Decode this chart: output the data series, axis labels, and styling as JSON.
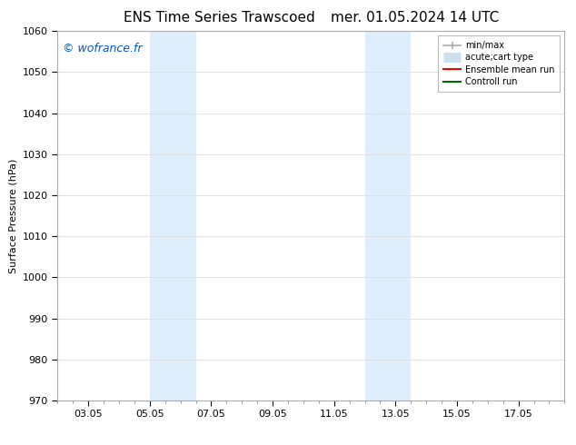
{
  "title_left": "ENS Time Series Trawscoed",
  "title_right": "mer. 01.05.2024 14 UTC",
  "ylabel": "Surface Pressure (hPa)",
  "ylim": [
    970,
    1060
  ],
  "yticks": [
    970,
    980,
    990,
    1000,
    1010,
    1020,
    1030,
    1040,
    1050,
    1060
  ],
  "xlim": [
    1.0,
    17.5
  ],
  "xtick_labels": [
    "03.05",
    "05.05",
    "07.05",
    "09.05",
    "11.05",
    "13.05",
    "15.05",
    "17.05"
  ],
  "xtick_positions": [
    2,
    4,
    6,
    8,
    10,
    12,
    14,
    16
  ],
  "shaded_regions": [
    {
      "xmin": 4.0,
      "xmax": 5.5
    },
    {
      "xmin": 11.0,
      "xmax": 12.5
    }
  ],
  "shaded_color": "#ddeeff",
  "watermark": "© wofrance.fr",
  "watermark_color": "#0055cc",
  "legend_entries": [
    {
      "label": "min/max",
      "color": "#aaaaaa",
      "lw": 1.2,
      "style": "errorbar"
    },
    {
      "label": "acute;cart type",
      "color": "#cce0f0",
      "lw": 8,
      "style": "thick"
    },
    {
      "label": "Ensemble mean run",
      "color": "#ff0000",
      "lw": 1.5,
      "style": "line"
    },
    {
      "label": "Controll run",
      "color": "#006600",
      "lw": 1.5,
      "style": "line"
    }
  ],
  "bg_color": "#ffffff",
  "grid_color": "#dddddd",
  "title_fontsize": 11,
  "ylabel_fontsize": 8,
  "tick_fontsize": 8,
  "watermark_fontsize": 9,
  "legend_fontsize": 7
}
